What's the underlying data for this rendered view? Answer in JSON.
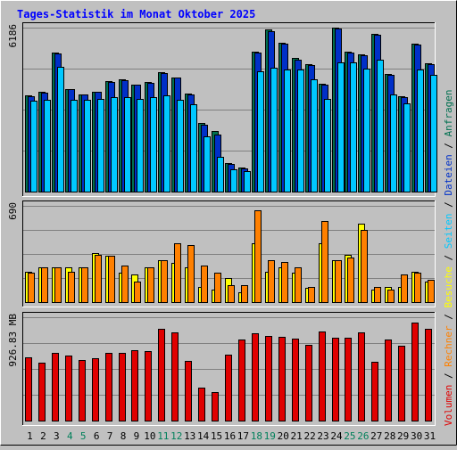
{
  "chart_data": {
    "type": "bar",
    "title": "Tages-Statistik im Monat Oktober 2025",
    "categories": [
      "1",
      "2",
      "3",
      "4",
      "5",
      "6",
      "7",
      "8",
      "9",
      "10",
      "11",
      "12",
      "13",
      "14",
      "15",
      "16",
      "17",
      "18",
      "19",
      "20",
      "21",
      "22",
      "23",
      "24",
      "25",
      "26",
      "27",
      "28",
      "29",
      "30",
      "31"
    ],
    "weekend_days": [
      4,
      5,
      11,
      12,
      18,
      19,
      25,
      26
    ],
    "legend": [
      {
        "text": "Anfragen",
        "color": "#007050"
      },
      {
        "text": "Dateien",
        "color": "#0030c8"
      },
      {
        "text": "Seiten",
        "color": "#00c8ff"
      },
      {
        "text": "Besuche",
        "color": "#ffff00"
      },
      {
        "text": "Rechner",
        "color": "#ff8000"
      },
      {
        "text": "Volumen",
        "color": "#e00000"
      }
    ],
    "panels": [
      {
        "id": "requests",
        "ymax": 6186,
        "ymax_label": "6186",
        "series": [
          {
            "name": "Anfragen",
            "color": "#007050",
            "values": [
              3630,
              3760,
              5250,
              3870,
              3680,
              3780,
              4180,
              4230,
              4050,
              4130,
              4510,
              4320,
              3700,
              2580,
              2270,
              1080,
              910,
              5280,
              6105,
              5620,
              5030,
              4820,
              4070,
              6185,
              5270,
              5190,
              5960,
              4430,
              3590,
              5590,
              4850
            ]
          },
          {
            "name": "Dateien",
            "color": "#0030c8",
            "values": [
              3600,
              3730,
              5200,
              3860,
              3660,
              3750,
              4150,
              4200,
              4020,
              4100,
              4480,
              4290,
              3680,
              2520,
              2140,
              1040,
              880,
              5230,
              6050,
              5590,
              4980,
              4780,
              4020,
              6150,
              5250,
              5150,
              5920,
              4400,
              3560,
              5560,
              4810
            ]
          },
          {
            "name": "Seiten",
            "color": "#00c8ff",
            "values": [
              3430,
              3470,
              4700,
              3470,
              3470,
              3500,
              3560,
              3550,
              3510,
              3570,
              3630,
              3470,
              3300,
              2090,
              1300,
              850,
              770,
              4540,
              4660,
              4620,
              4610,
              4220,
              3480,
              4870,
              4860,
              4640,
              4990,
              3650,
              3330,
              4590,
              4400
            ]
          }
        ]
      },
      {
        "id": "visits",
        "ymax": 690,
        "ymax_label": "690",
        "series": [
          {
            "name": "Besuche",
            "color": "#ffff00",
            "values": [
              220,
              250,
              250,
              250,
              250,
              350,
              330,
              210,
              200,
              250,
              300,
              280,
              250,
              110,
              90,
              170,
              70,
              420,
              220,
              250,
              210,
              100,
              420,
              300,
              340,
              560,
              90,
              110,
              110,
              220,
              150
            ]
          },
          {
            "name": "Rechner",
            "color": "#ff8000",
            "values": [
              210,
              250,
              250,
              220,
              250,
              340,
              330,
              260,
              150,
              250,
              300,
              420,
              410,
              260,
              210,
              120,
              120,
              660,
              300,
              290,
              250,
              110,
              580,
              300,
              320,
              520,
              110,
              90,
              200,
              210,
              160
            ]
          }
        ]
      },
      {
        "id": "volume",
        "ymax": 926.83,
        "ymax_label": "926.83 MB",
        "series": [
          {
            "name": "Volumen",
            "color": "#e00000",
            "values": [
              571,
              520,
              609,
              583,
              546,
              557,
              609,
              605,
              628,
              626,
              826,
              790,
              537,
              292,
              253,
              591,
              728,
              781,
              762,
              752,
              735,
              677,
              796,
              740,
              742,
              790,
              531,
              731,
              673,
              876,
              826
            ]
          }
        ]
      }
    ]
  }
}
